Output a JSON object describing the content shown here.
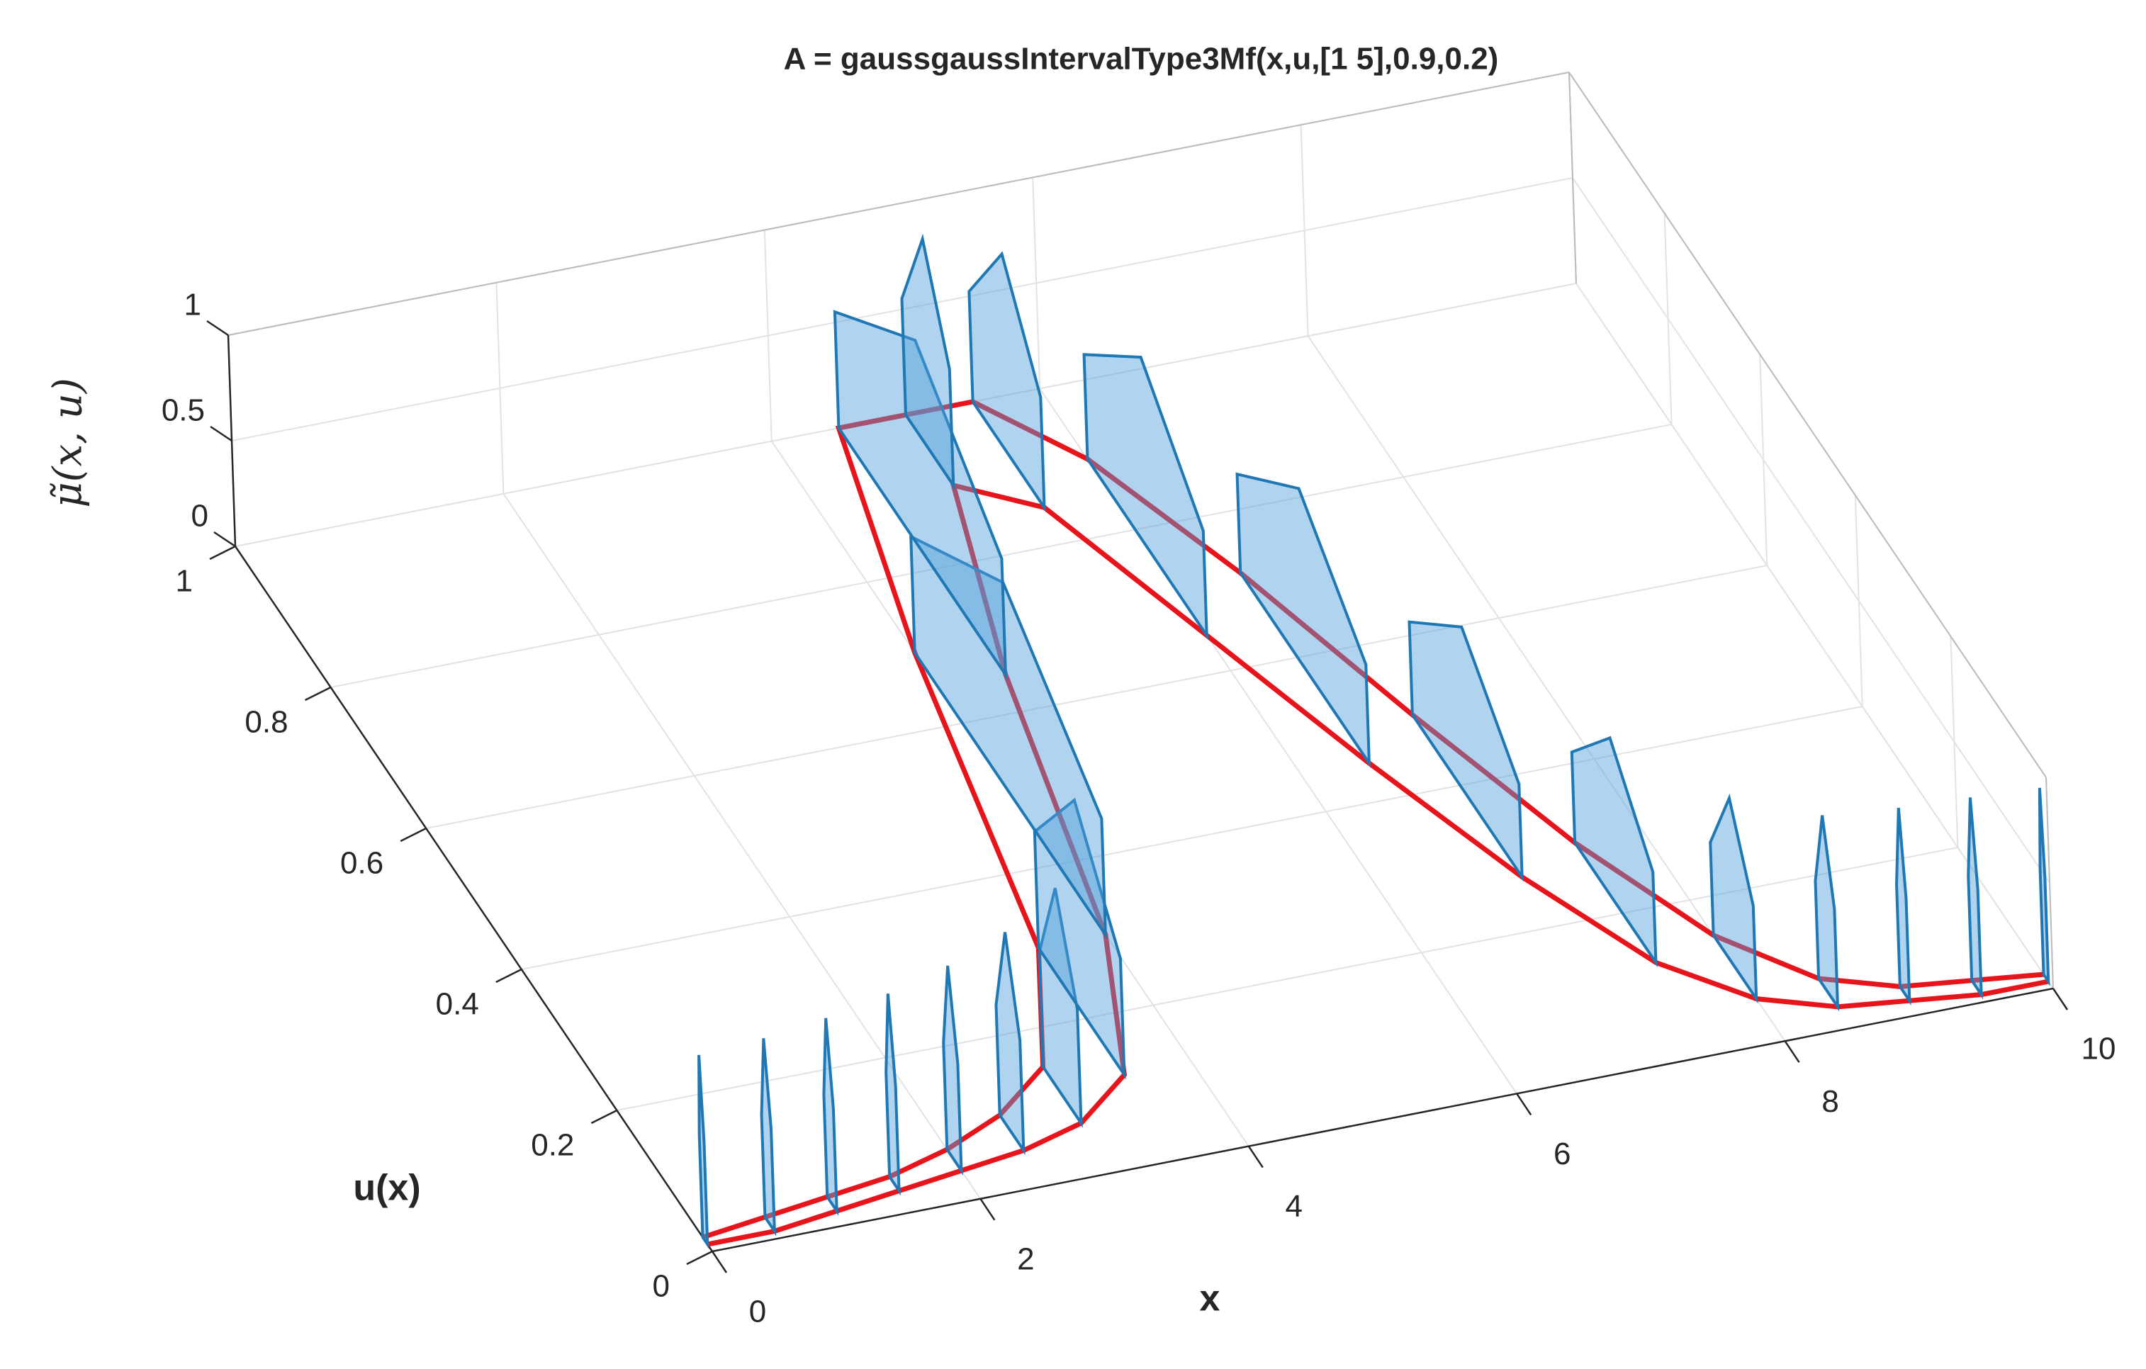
{
  "chart_data": {
    "type": "surface3d",
    "title": "A = gaussgaussIntervalType3Mf(x,u,[1 5],0.9,0.2)",
    "xlabel": "x",
    "ylabel": "u(x)",
    "zlabel": "μ̃(x, u)",
    "x": [
      0,
      0.5,
      1,
      1.5,
      2,
      2.5,
      3,
      3.5,
      4,
      4.5,
      5,
      5.5,
      6,
      6.5,
      7,
      7.5,
      8,
      8.5,
      9,
      9.5,
      10
    ],
    "series": [
      {
        "color": "#e8141c",
        "values": [
          0.02,
          0.03,
          0.04,
          0.05,
          0.07,
          0.1,
          0.15,
          0.3,
          0.7,
          1,
          1,
          1,
          0.9,
          0.72,
          0.5,
          0.3,
          0.15,
          0.07,
          0.04,
          0.03,
          0.02
        ]
      },
      {
        "color": "#e8141c",
        "values": [
          0.01,
          0.01,
          0.02,
          0.03,
          0.04,
          0.05,
          0.07,
          0.12,
          0.3,
          0.65,
          0.9,
          0.85,
          0.65,
          0.45,
          0.27,
          0.13,
          0.06,
          0.03,
          0.02,
          0.01,
          0.01
        ]
      }
    ],
    "mu": {
      "color": "#1f77b4",
      "values": [
        0.88,
        0.88,
        0.88,
        0.9,
        0.92,
        0.95,
        0.98,
        1,
        1,
        1,
        1,
        0.95,
        0.9,
        0.85,
        0.8,
        0.78,
        0.8,
        0.84,
        0.88,
        0.9,
        0.9
      ]
    },
    "xlim": [
      0,
      10
    ],
    "ylim": [
      0,
      1
    ],
    "zlim": [
      0,
      1
    ],
    "xticks": [
      0,
      2,
      4,
      6,
      8,
      10
    ],
    "yticks": [
      0,
      0.2,
      0.4,
      0.6,
      0.8,
      1
    ],
    "zticks": [
      0,
      0.5,
      1
    ],
    "grid": true
  }
}
